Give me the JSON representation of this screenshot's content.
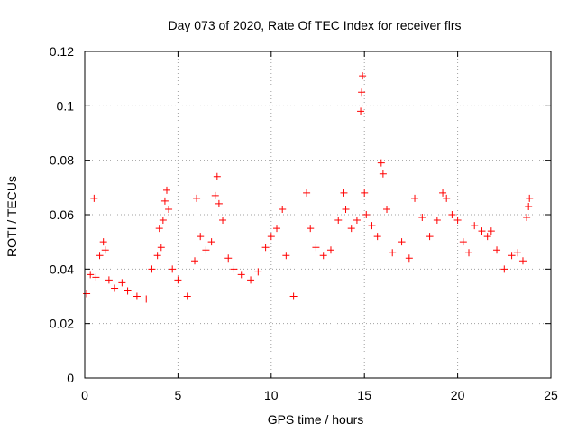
{
  "chart_data": {
    "type": "scatter",
    "title": "Day 073 of 2020, Rate Of TEC Index for receiver flrs",
    "xlabel": "GPS time / hours",
    "ylabel": "ROTI / TECUs",
    "xlim": [
      0,
      25
    ],
    "ylim": [
      0,
      0.12
    ],
    "x_ticks": [
      "0",
      "5",
      "10",
      "15",
      "20",
      "25"
    ],
    "y_ticks": [
      "0",
      "0.02",
      "0.04",
      "0.06",
      "0.08",
      "0.1",
      "0.12"
    ],
    "grid": true,
    "marker": "+",
    "color": "#ff0000",
    "series": [
      {
        "points": [
          [
            0.1,
            0.031
          ],
          [
            0.3,
            0.038
          ],
          [
            0.5,
            0.066
          ],
          [
            0.6,
            0.037
          ],
          [
            0.8,
            0.045
          ],
          [
            1.0,
            0.05
          ],
          [
            1.1,
            0.047
          ],
          [
            1.3,
            0.036
          ],
          [
            1.6,
            0.033
          ],
          [
            2.0,
            0.035
          ],
          [
            2.3,
            0.032
          ],
          [
            2.8,
            0.03
          ],
          [
            3.3,
            0.029
          ],
          [
            3.6,
            0.04
          ],
          [
            3.9,
            0.045
          ],
          [
            4.0,
            0.055
          ],
          [
            4.1,
            0.048
          ],
          [
            4.2,
            0.058
          ],
          [
            4.3,
            0.065
          ],
          [
            4.4,
            0.069
          ],
          [
            4.5,
            0.062
          ],
          [
            4.7,
            0.04
          ],
          [
            5.0,
            0.036
          ],
          [
            5.5,
            0.03
          ],
          [
            5.9,
            0.043
          ],
          [
            6.0,
            0.066
          ],
          [
            6.2,
            0.052
          ],
          [
            6.5,
            0.047
          ],
          [
            6.8,
            0.05
          ],
          [
            7.0,
            0.067
          ],
          [
            7.1,
            0.074
          ],
          [
            7.2,
            0.064
          ],
          [
            7.4,
            0.058
          ],
          [
            7.7,
            0.044
          ],
          [
            8.0,
            0.04
          ],
          [
            8.4,
            0.038
          ],
          [
            8.9,
            0.036
          ],
          [
            9.3,
            0.039
          ],
          [
            9.7,
            0.048
          ],
          [
            10.0,
            0.052
          ],
          [
            10.3,
            0.055
          ],
          [
            10.6,
            0.062
          ],
          [
            10.8,
            0.045
          ],
          [
            11.2,
            0.03
          ],
          [
            11.9,
            0.068
          ],
          [
            12.1,
            0.055
          ],
          [
            12.4,
            0.048
          ],
          [
            12.8,
            0.045
          ],
          [
            13.2,
            0.047
          ],
          [
            13.6,
            0.058
          ],
          [
            13.9,
            0.068
          ],
          [
            14.0,
            0.062
          ],
          [
            14.3,
            0.055
          ],
          [
            14.6,
            0.058
          ],
          [
            14.8,
            0.098
          ],
          [
            14.85,
            0.105
          ],
          [
            14.9,
            0.111
          ],
          [
            15.0,
            0.068
          ],
          [
            15.1,
            0.06
          ],
          [
            15.4,
            0.056
          ],
          [
            15.7,
            0.052
          ],
          [
            15.9,
            0.079
          ],
          [
            16.0,
            0.075
          ],
          [
            16.2,
            0.062
          ],
          [
            16.5,
            0.046
          ],
          [
            17.0,
            0.05
          ],
          [
            17.4,
            0.044
          ],
          [
            17.7,
            0.066
          ],
          [
            18.1,
            0.059
          ],
          [
            18.5,
            0.052
          ],
          [
            18.9,
            0.058
          ],
          [
            19.2,
            0.068
          ],
          [
            19.4,
            0.066
          ],
          [
            19.7,
            0.06
          ],
          [
            20.0,
            0.058
          ],
          [
            20.3,
            0.05
          ],
          [
            20.6,
            0.046
          ],
          [
            20.9,
            0.056
          ],
          [
            21.3,
            0.054
          ],
          [
            21.6,
            0.052
          ],
          [
            21.8,
            0.054
          ],
          [
            22.1,
            0.047
          ],
          [
            22.5,
            0.04
          ],
          [
            22.9,
            0.045
          ],
          [
            23.2,
            0.046
          ],
          [
            23.5,
            0.043
          ],
          [
            23.7,
            0.059
          ],
          [
            23.8,
            0.063
          ],
          [
            23.85,
            0.066
          ]
        ]
      }
    ]
  }
}
